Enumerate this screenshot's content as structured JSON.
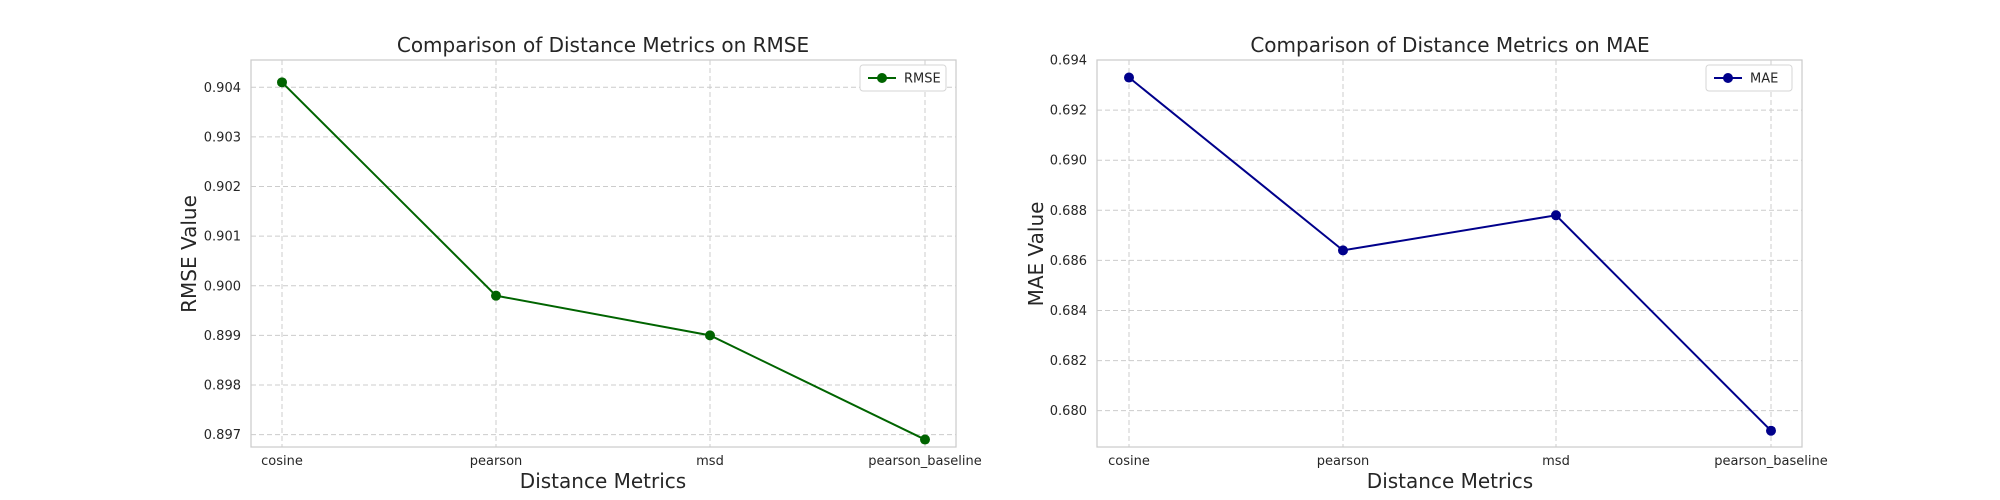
{
  "chart_data": [
    {
      "type": "line",
      "title": "Comparison of Distance Metrics on RMSE",
      "xlabel": "Distance Metrics",
      "ylabel": "RMSE Value",
      "categories": [
        "cosine",
        "pearson",
        "msd",
        "pearson_baseline"
      ],
      "series": [
        {
          "name": "RMSE",
          "values": [
            0.9041,
            0.8998,
            0.899,
            0.8969
          ],
          "color": "#006400",
          "marker": "circle"
        }
      ],
      "ylim": [
        0.89675,
        0.90455
      ],
      "yticks": [
        "0.897",
        "0.898",
        "0.899",
        "0.900",
        "0.901",
        "0.902",
        "0.903",
        "0.904"
      ],
      "grid": true,
      "legend": "top-right"
    },
    {
      "type": "line",
      "title": "Comparison of Distance Metrics on MAE",
      "xlabel": "Distance Metrics",
      "ylabel": "MAE Value",
      "categories": [
        "cosine",
        "pearson",
        "msd",
        "pearson_baseline"
      ],
      "series": [
        {
          "name": "MAE",
          "values": [
            0.6933,
            0.6864,
            0.6878,
            0.6792
          ],
          "color": "#00008b",
          "marker": "circle"
        }
      ],
      "ylim": [
        0.67855,
        0.694
      ],
      "yticks": [
        "0.680",
        "0.682",
        "0.684",
        "0.686",
        "0.688",
        "0.690",
        "0.692",
        "0.694"
      ],
      "grid": true,
      "legend": "top-right"
    }
  ]
}
